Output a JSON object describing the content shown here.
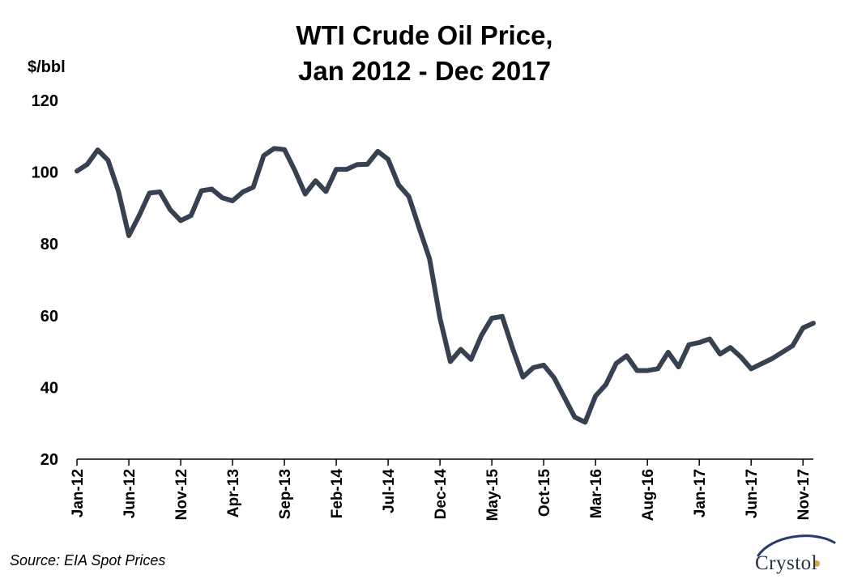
{
  "header": {
    "title_line1": "WTI Crude Oil Price,",
    "title_line2": "Jan 2012 - Dec 2017",
    "ylabel": "$/bbl"
  },
  "footer": {
    "source": "Source: EIA Spot Prices",
    "logo_text": "Crystol"
  },
  "colors": {
    "line": "#364152",
    "axis": "#000000",
    "logo_swoosh": "#2a3a6e",
    "logo_dot": "#d4a64a"
  },
  "chart_data": {
    "type": "line",
    "title": "WTI Crude Oil Price, Jan 2012 - Dec 2017",
    "xlabel": "",
    "ylabel": "$/bbl",
    "ylim": [
      20,
      120
    ],
    "yticks": [
      20,
      40,
      60,
      80,
      100,
      120
    ],
    "grid": false,
    "legend": "none",
    "xtick_labels": [
      "Jan-12",
      "Jun-12",
      "Nov-12",
      "Apr-13",
      "Sep-13",
      "Feb-14",
      "Jul-14",
      "Dec-14",
      "May-15",
      "Oct-15",
      "Mar-16",
      "Aug-16",
      "Jan-17",
      "Jun-17",
      "Nov-17"
    ],
    "x": [
      "Jan-12",
      "Feb-12",
      "Mar-12",
      "Apr-12",
      "May-12",
      "Jun-12",
      "Jul-12",
      "Aug-12",
      "Sep-12",
      "Oct-12",
      "Nov-12",
      "Dec-12",
      "Jan-13",
      "Feb-13",
      "Mar-13",
      "Apr-13",
      "May-13",
      "Jun-13",
      "Jul-13",
      "Aug-13",
      "Sep-13",
      "Oct-13",
      "Nov-13",
      "Dec-13",
      "Jan-14",
      "Feb-14",
      "Mar-14",
      "Apr-14",
      "May-14",
      "Jun-14",
      "Jul-14",
      "Aug-14",
      "Sep-14",
      "Oct-14",
      "Nov-14",
      "Dec-14",
      "Jan-15",
      "Feb-15",
      "Mar-15",
      "Apr-15",
      "May-15",
      "Jun-15",
      "Jul-15",
      "Aug-15",
      "Sep-15",
      "Oct-15",
      "Nov-15",
      "Dec-15",
      "Jan-16",
      "Feb-16",
      "Mar-16",
      "Apr-16",
      "May-16",
      "Jun-16",
      "Jul-16",
      "Aug-16",
      "Sep-16",
      "Oct-16",
      "Nov-16",
      "Dec-16",
      "Jan-17",
      "Feb-17",
      "Mar-17",
      "Apr-17",
      "May-17",
      "Jun-17",
      "Jul-17",
      "Aug-17",
      "Sep-17",
      "Oct-17",
      "Nov-17",
      "Dec-17"
    ],
    "series": [
      {
        "values": [
          100.3,
          102.2,
          106.2,
          103.3,
          94.7,
          82.3,
          87.9,
          94.2,
          94.5,
          89.5,
          86.5,
          87.9,
          94.8,
          95.3,
          92.9,
          92.0,
          94.5,
          95.8,
          104.6,
          106.6,
          106.3,
          100.5,
          93.9,
          97.6,
          94.6,
          100.8,
          100.8,
          102.1,
          102.2,
          105.8,
          103.6,
          96.5,
          93.2,
          84.4,
          75.8,
          59.3,
          47.2,
          50.6,
          47.8,
          54.5,
          59.3,
          59.8,
          50.9,
          42.9,
          45.5,
          46.2,
          42.7,
          37.2,
          31.7,
          30.3,
          37.6,
          40.8,
          46.7,
          48.8,
          44.7,
          44.7,
          45.2,
          49.8,
          45.7,
          51.9,
          52.5,
          53.5,
          49.3,
          51.1,
          48.5,
          45.2,
          46.6,
          48.0,
          49.8,
          51.6,
          56.6,
          57.9
        ]
      }
    ]
  }
}
